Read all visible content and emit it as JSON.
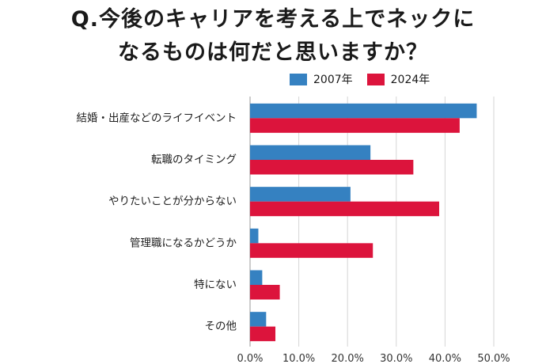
{
  "title_lines": [
    "Q.今後のキャリアを考える上でネックに",
    "なるものは何だと思いますか？"
  ],
  "chart_data": {
    "type": "bar",
    "orientation": "horizontal",
    "categories": [
      "結婚・出産などのライフイベント",
      "転職のタイミング",
      "やりたいことが分からない",
      "管理職になるかどうか",
      "特にない",
      "その他"
    ],
    "series": [
      {
        "name": "2007年",
        "color": "#3581c1",
        "values": [
          46.5,
          24.7,
          20.6,
          1.7,
          2.5,
          3.3
        ]
      },
      {
        "name": "2024年",
        "color": "#dc143c",
        "values": [
          43.0,
          33.5,
          38.8,
          25.2,
          6.1,
          5.2
        ]
      }
    ],
    "xlim": [
      0,
      50
    ],
    "xticks": [
      "0.0%",
      "10.0%",
      "20.0%",
      "30.0%",
      "40.0%",
      "50.0%"
    ],
    "grid": true,
    "legend_position": "top"
  }
}
